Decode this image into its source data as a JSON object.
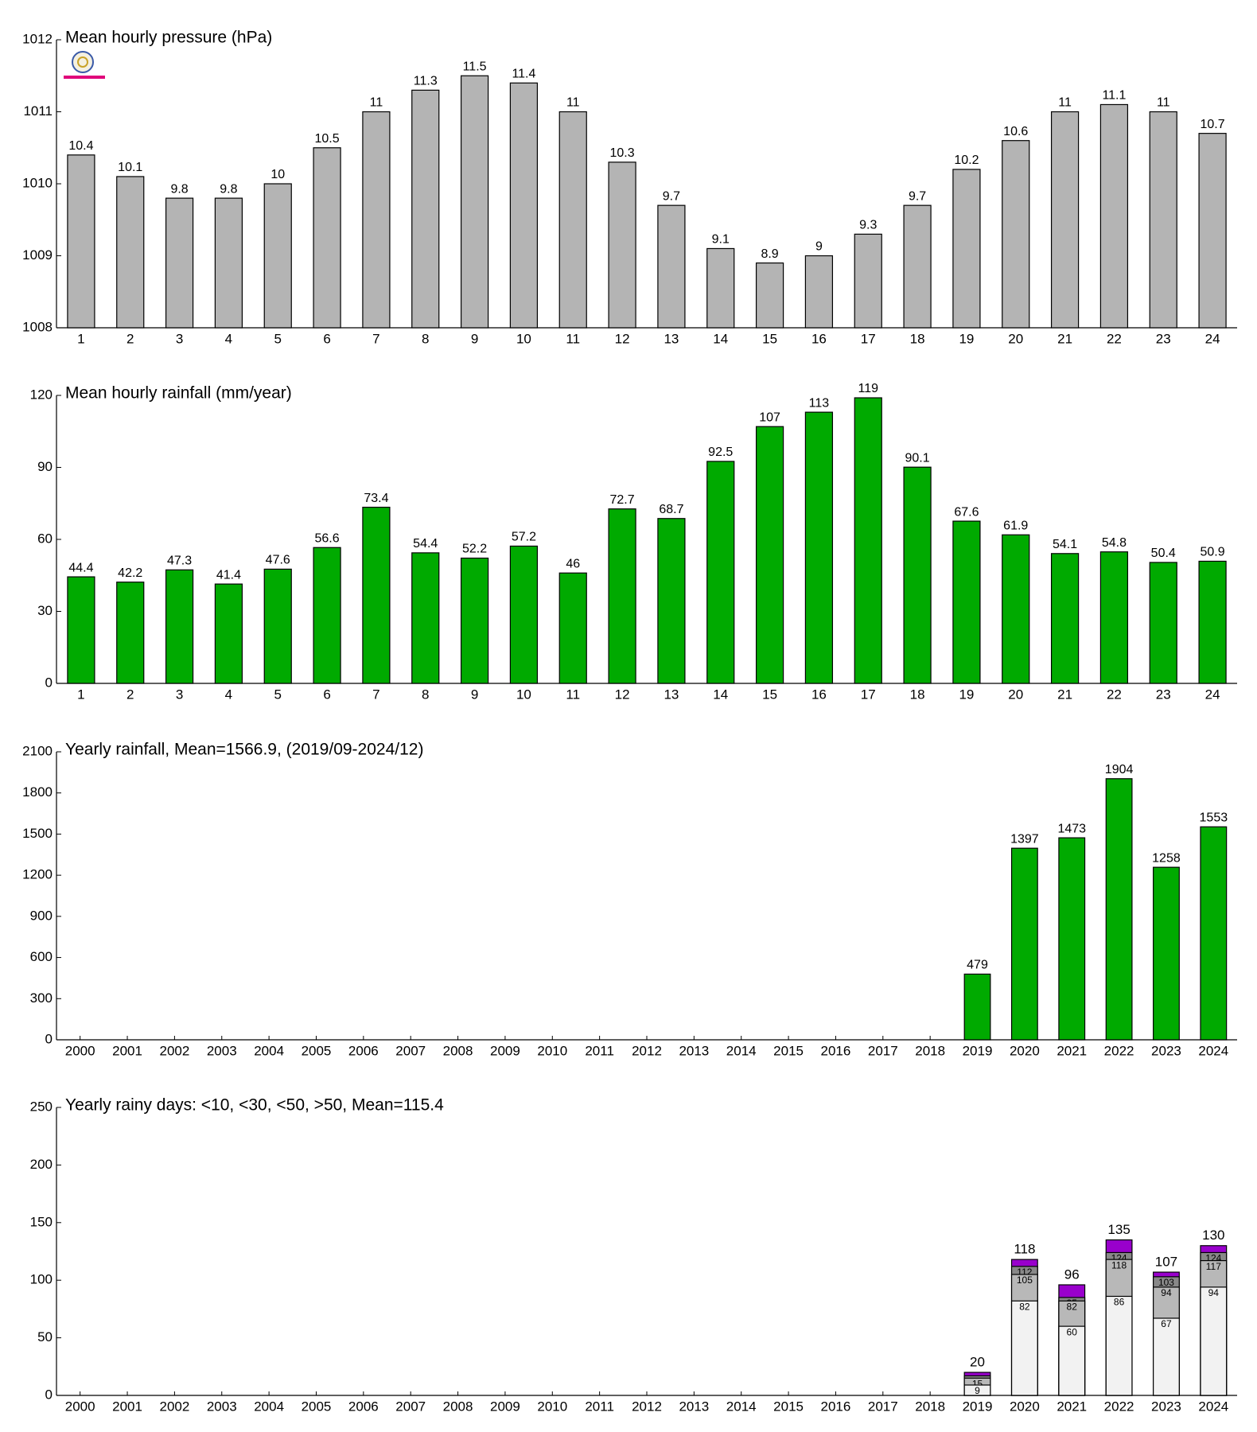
{
  "chart_data": [
    {
      "type": "bar",
      "title": "Mean hourly pressure (hPa)",
      "categories": [
        "1",
        "2",
        "3",
        "4",
        "5",
        "6",
        "7",
        "8",
        "9",
        "10",
        "11",
        "12",
        "13",
        "14",
        "15",
        "16",
        "17",
        "18",
        "19",
        "20",
        "21",
        "22",
        "23",
        "24"
      ],
      "values": [
        1010.4,
        1010.1,
        1009.8,
        1009.8,
        1010,
        1010.5,
        1011,
        1011.3,
        1011.5,
        1011.4,
        1011,
        1010.3,
        1009.7,
        1009.1,
        1008.9,
        1009,
        1009.3,
        1009.7,
        1010.2,
        1010.6,
        1011,
        1011.1,
        1011,
        1010.7
      ],
      "value_labels": [
        "10.4",
        "10.1",
        "9.8",
        "9.8",
        "10",
        "10.5",
        "11",
        "11.3",
        "11.5",
        "11.4",
        "11",
        "10.3",
        "9.7",
        "9.1",
        "8.9",
        "9",
        "9.3",
        "9.7",
        "10.2",
        "10.6",
        "11",
        "11.1",
        "11",
        "10.7"
      ],
      "color": "#b4b4b4",
      "ylim": [
        1008,
        1012
      ],
      "yticks": [
        1008,
        1009,
        1010,
        1011,
        1012
      ]
    },
    {
      "type": "bar",
      "title": "Mean hourly rainfall (mm/year)",
      "categories": [
        "1",
        "2",
        "3",
        "4",
        "5",
        "6",
        "7",
        "8",
        "9",
        "10",
        "11",
        "12",
        "13",
        "14",
        "15",
        "16",
        "17",
        "18",
        "19",
        "20",
        "21",
        "22",
        "23",
        "24"
      ],
      "values": [
        44.4,
        42.2,
        47.3,
        41.4,
        47.6,
        56.6,
        73.4,
        54.4,
        52.2,
        57.2,
        46,
        72.7,
        68.7,
        92.5,
        107,
        113,
        119,
        90.1,
        67.6,
        61.9,
        54.1,
        54.8,
        50.4,
        50.9
      ],
      "color": "#00aa00",
      "ylim": [
        0,
        120
      ],
      "yticks": [
        0,
        30,
        60,
        90,
        120
      ]
    },
    {
      "type": "bar",
      "title": "Yearly rainfall, Mean=1566.9, (2019/09-2024/12)",
      "categories": [
        "2000",
        "2001",
        "2002",
        "2003",
        "2004",
        "2005",
        "2006",
        "2007",
        "2008",
        "2009",
        "2010",
        "2011",
        "2012",
        "2013",
        "2014",
        "2015",
        "2016",
        "2017",
        "2018",
        "2019",
        "2020",
        "2021",
        "2022",
        "2023",
        "2024"
      ],
      "values": [
        null,
        null,
        null,
        null,
        null,
        null,
        null,
        null,
        null,
        null,
        null,
        null,
        null,
        null,
        null,
        null,
        null,
        null,
        null,
        479,
        1397,
        1473,
        1904,
        1258,
        1553
      ],
      "color": "#00aa00",
      "ylim": [
        0,
        2100
      ],
      "yticks": [
        0,
        300,
        600,
        900,
        1200,
        1500,
        1800,
        2100
      ]
    },
    {
      "type": "overlay-bar",
      "title": "Yearly rainy days: <10, <30, <50, >50, Mean=115.4",
      "categories": [
        "2000",
        "2001",
        "2002",
        "2003",
        "2004",
        "2005",
        "2006",
        "2007",
        "2008",
        "2009",
        "2010",
        "2011",
        "2012",
        "2013",
        "2014",
        "2015",
        "2016",
        "2017",
        "2018",
        "2019",
        "2020",
        "2021",
        "2022",
        "2023",
        "2024"
      ],
      "series": [
        {
          "color": "#f2f2f2",
          "values": [
            null,
            null,
            null,
            null,
            null,
            null,
            null,
            null,
            null,
            null,
            null,
            null,
            null,
            null,
            null,
            null,
            null,
            null,
            null,
            9,
            82,
            60,
            86,
            67,
            94
          ]
        },
        {
          "color": "#b8b8b8",
          "values": [
            null,
            null,
            null,
            null,
            null,
            null,
            null,
            null,
            null,
            null,
            null,
            null,
            null,
            null,
            null,
            null,
            null,
            null,
            null,
            15,
            105,
            82,
            118,
            94,
            117
          ]
        },
        {
          "color": "#888888",
          "values": [
            null,
            null,
            null,
            null,
            null,
            null,
            null,
            null,
            null,
            null,
            null,
            null,
            null,
            null,
            null,
            null,
            null,
            null,
            null,
            17,
            112,
            85,
            124,
            103,
            124
          ]
        },
        {
          "color": "#9900cc",
          "values": [
            null,
            null,
            null,
            null,
            null,
            null,
            null,
            null,
            null,
            null,
            null,
            null,
            null,
            null,
            null,
            null,
            null,
            null,
            null,
            20,
            118,
            96,
            135,
            107,
            130
          ]
        }
      ],
      "ylim": [
        0,
        250
      ],
      "yticks": [
        0,
        50,
        100,
        150,
        200,
        250
      ]
    }
  ]
}
